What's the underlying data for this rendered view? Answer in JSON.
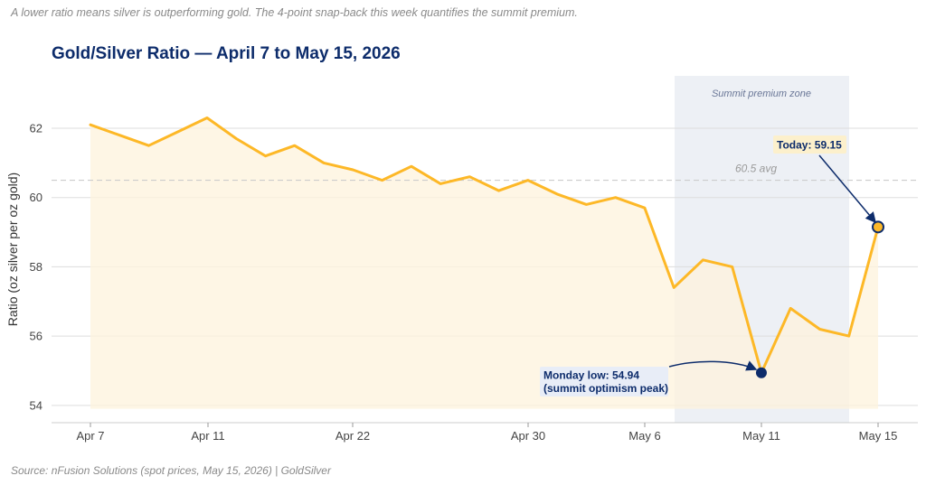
{
  "subtitle": "A lower ratio means silver is outperforming gold. The 4-point snap-back this week quantifies the summit premium.",
  "source": "Source: nFusion Solutions (spot prices, May 15, 2026) | GoldSilver",
  "colors": {
    "line": "#FDB827",
    "area": "#FDF3DC",
    "zone": "#E9ECF3",
    "annotation_dark": "#0D2C6B",
    "grid": "#DDDDDD",
    "avg_line": "#CCCCCC"
  },
  "chart_data": {
    "type": "line",
    "title": "Gold/Silver Ratio — April 7 to May 15, 2026",
    "ylabel": "Ratio (oz silver per oz gold)",
    "xlabel": "",
    "x_start": "2026-04-07",
    "x_end": "2026-05-15",
    "ylim": [
      53.5,
      63.5
    ],
    "yticks": [
      54,
      56,
      58,
      60,
      62
    ],
    "xticks": [
      {
        "date": "2026-04-07",
        "label": "Apr 7"
      },
      {
        "date": "2026-04-11",
        "label": "Apr 11"
      },
      {
        "date": "2026-04-22",
        "label": "Apr 22"
      },
      {
        "date": "2026-04-30",
        "label": "Apr 30"
      },
      {
        "date": "2026-05-06",
        "label": "May 6"
      },
      {
        "date": "2026-05-11",
        "label": "May 11"
      },
      {
        "date": "2026-05-15",
        "label": "May 15"
      }
    ],
    "grid": true,
    "series": [
      {
        "name": "",
        "points": [
          {
            "x": "2026-04-07",
            "y": 62.1
          },
          {
            "x": "2026-04-08",
            "y": 61.8
          },
          {
            "x": "2026-04-09",
            "y": 61.5
          },
          {
            "x": "2026-04-10",
            "y": 61.9
          },
          {
            "x": "2026-04-11",
            "y": 62.3
          },
          {
            "x": "2026-04-12",
            "y": 61.7
          },
          {
            "x": "2026-04-13",
            "y": 61.2
          },
          {
            "x": "2026-04-14",
            "y": 61.5
          },
          {
            "x": "2026-04-15",
            "y": 61.0
          },
          {
            "x": "2026-04-16",
            "y": 60.8
          },
          {
            "x": "2026-04-17",
            "y": 60.5
          },
          {
            "x": "2026-04-18",
            "y": 60.9
          },
          {
            "x": "2026-04-19",
            "y": 60.4
          },
          {
            "x": "2026-04-20",
            "y": 60.6
          },
          {
            "x": "2026-04-21",
            "y": 60.2
          },
          {
            "x": "2026-04-22",
            "y": 60.5
          },
          {
            "x": "2026-04-23",
            "y": 60.1
          },
          {
            "x": "2026-04-24",
            "y": 59.8
          },
          {
            "x": "2026-04-25",
            "y": 60.0
          },
          {
            "x": "2026-04-26",
            "y": 59.7
          },
          {
            "x": "2026-04-28",
            "y": 57.4
          },
          {
            "x": "2026-04-29",
            "y": 58.2
          },
          {
            "x": "2026-04-30",
            "y": 58.0
          },
          {
            "x": "2026-05-01",
            "y": 54.94
          },
          {
            "x": "2026-05-02",
            "y": 56.8
          },
          {
            "x": "2026-05-03",
            "y": 56.2
          },
          {
            "x": "2026-05-04",
            "y": 56.0
          },
          {
            "x": "2026-05-05",
            "y": 59.15
          }
        ]
      }
    ],
    "average": {
      "value": 60.5,
      "label": "60.5 avg"
    },
    "shaded_zone": {
      "label": "Summit premium zone",
      "from": "2026-04-28",
      "to": "2026-05-04"
    },
    "annotations": [
      {
        "id": "today",
        "text": [
          "Today: 59.15"
        ],
        "x": "2026-05-05",
        "y": 59.15
      },
      {
        "id": "low",
        "text": [
          "Monday low: 54.94",
          "(summit optimism peak)"
        ],
        "x": "2026-05-01",
        "y": 54.94
      }
    ]
  }
}
